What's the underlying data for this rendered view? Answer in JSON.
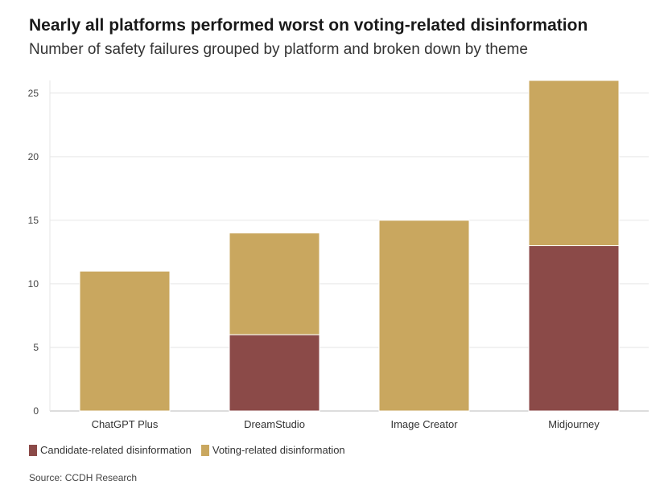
{
  "chart_data": {
    "type": "bar",
    "stacked": true,
    "title": "Nearly all platforms performed worst on voting-related disinformation",
    "subtitle": "Number of safety failures grouped by platform and broken down by theme",
    "categories": [
      "ChatGPT Plus",
      "DreamStudio",
      "Image Creator",
      "Midjourney"
    ],
    "series": [
      {
        "name": "Candidate-related disinformation",
        "color": "#8b4a48",
        "values": [
          0,
          6,
          0,
          13
        ]
      },
      {
        "name": "Voting-related disinformation",
        "color": "#c9a75f",
        "values": [
          11,
          8,
          15,
          13
        ]
      }
    ],
    "ylim": [
      0,
      26
    ],
    "yticks": [
      0,
      5,
      10,
      15,
      20,
      25
    ],
    "xlabel": "",
    "ylabel": "",
    "grid": true,
    "legend_position": "bottom-left",
    "source": "Source: CCDH Research"
  }
}
